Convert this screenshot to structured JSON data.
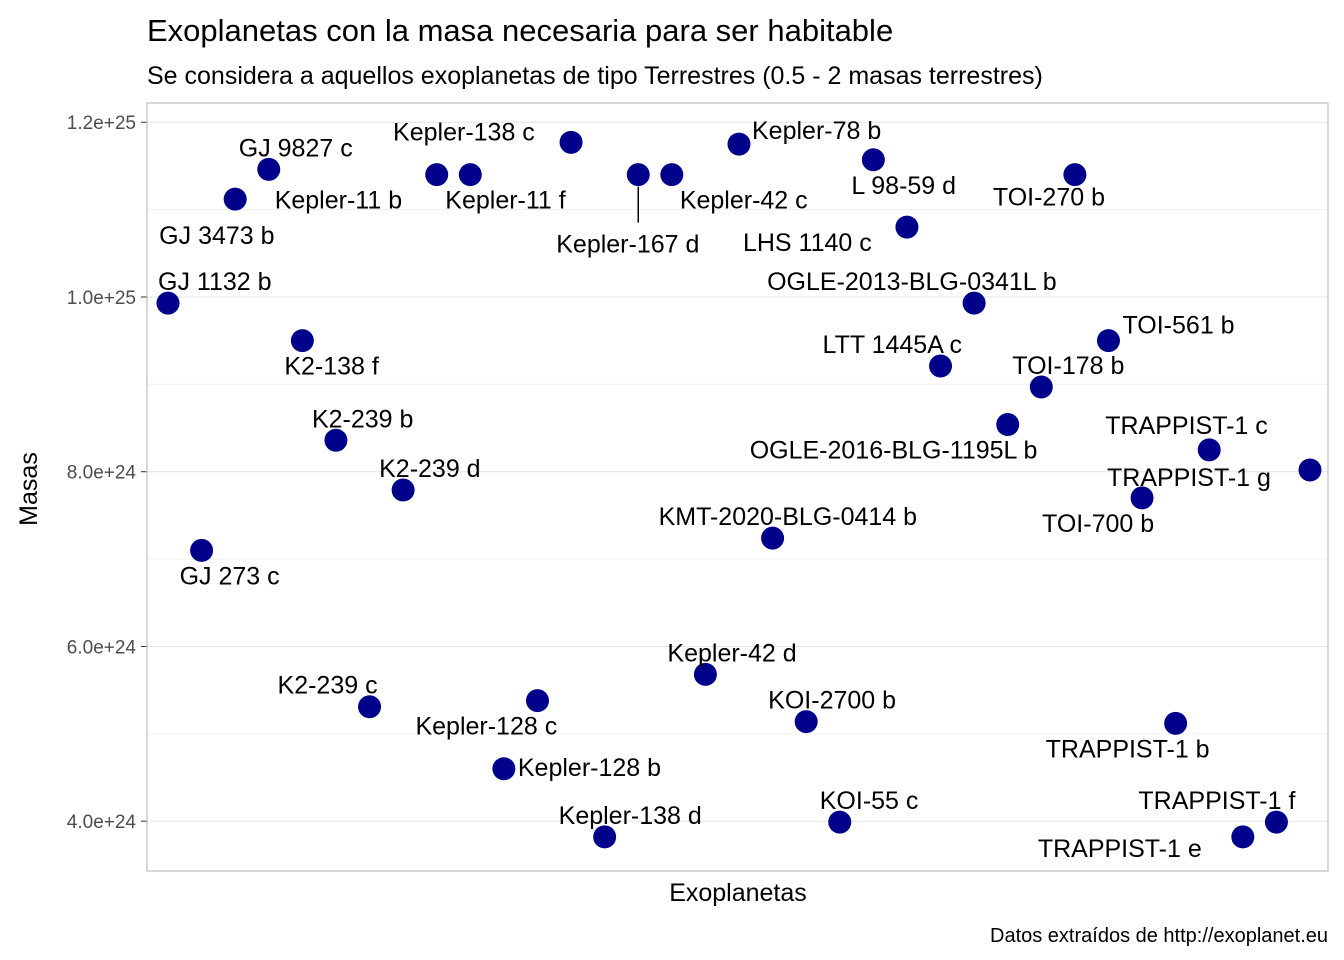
{
  "chart_data": {
    "type": "scatter",
    "title": "Exoplanetas con la masa necesaria para ser habitable",
    "subtitle": "Se considera a aquellos exoplanetas de tipo Terrestres (0.5 - 2 masas terrestres)",
    "caption": "Datos extraídos de http://exoplanet.eu",
    "xlabel": "Exoplanetas",
    "ylabel": "Masas",
    "ylim": [
      3.43e+24,
      1.222e+25
    ],
    "yticks": [
      4e+24,
      6e+24,
      8e+24,
      1e+25,
      1.2e+25
    ],
    "ytick_labels": [
      "4.0e+24",
      "6.0e+24",
      "8.0e+24",
      "1.0e+25",
      "1.2e+25"
    ],
    "grid": true,
    "point_color": "#00008B",
    "points": [
      {
        "x": "GJ 1132 b",
        "y": 9.93e+24
      },
      {
        "x": "GJ 273 c",
        "y": 7.1e+24
      },
      {
        "x": "GJ 3473 b",
        "y": 1.112e+25
      },
      {
        "x": "GJ 9827 c",
        "y": 1.146e+25
      },
      {
        "x": "K2-138 f",
        "y": 9.5e+24
      },
      {
        "x": "K2-239 b",
        "y": 8.36e+24
      },
      {
        "x": "K2-239 c",
        "y": 5.31e+24
      },
      {
        "x": "K2-239 d",
        "y": 7.79e+24
      },
      {
        "x": "Kepler-11 b",
        "y": 1.14e+25
      },
      {
        "x": "Kepler-11 f",
        "y": 1.14e+25
      },
      {
        "x": "Kepler-128 b",
        "y": 4.6e+24
      },
      {
        "x": "Kepler-128 c",
        "y": 5.38e+24
      },
      {
        "x": "Kepler-138 c",
        "y": 1.177e+25
      },
      {
        "x": "Kepler-138 d",
        "y": 3.82e+24
      },
      {
        "x": "Kepler-167 d",
        "y": 1.14e+25
      },
      {
        "x": "Kepler-42 c",
        "y": 1.14e+25
      },
      {
        "x": "Kepler-42 d",
        "y": 5.68e+24
      },
      {
        "x": "Kepler-78 b",
        "y": 1.175e+25
      },
      {
        "x": "KMT-2020-BLG-0414 b",
        "y": 7.24e+24
      },
      {
        "x": "KOI-2700 b",
        "y": 5.14e+24
      },
      {
        "x": "KOI-55 c",
        "y": 3.99e+24
      },
      {
        "x": "L 98-59 d",
        "y": 1.157e+25
      },
      {
        "x": "LHS 1140 c",
        "y": 1.08e+25
      },
      {
        "x": "LTT 1445A c",
        "y": 9.21e+24
      },
      {
        "x": "OGLE-2013-BLG-0341L b",
        "y": 9.93e+24
      },
      {
        "x": "OGLE-2016-BLG-1195L b",
        "y": 8.54e+24
      },
      {
        "x": "TOI-178 b",
        "y": 8.97e+24
      },
      {
        "x": "TOI-270 b",
        "y": 1.14e+25
      },
      {
        "x": "TOI-561 b",
        "y": 9.5e+24
      },
      {
        "x": "TOI-700 b",
        "y": 7.7e+24
      },
      {
        "x": "TRAPPIST-1 b",
        "y": 5.12e+24
      },
      {
        "x": "TRAPPIST-1 c",
        "y": 8.25e+24
      },
      {
        "x": "TRAPPIST-1 e",
        "y": 3.82e+24
      },
      {
        "x": "TRAPPIST-1 f",
        "y": 3.99e+24
      },
      {
        "x": "TRAPPIST-1 g",
        "y": 8.02e+24
      }
    ]
  }
}
